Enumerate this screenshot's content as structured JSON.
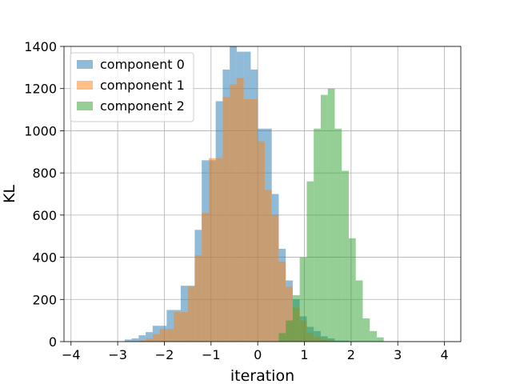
{
  "chart_data": {
    "type": "histogram",
    "xlabel": "iteration",
    "ylabel": "KL",
    "xlim": [
      -4.15,
      4.35
    ],
    "ylim": [
      0,
      1400
    ],
    "xticks": [
      -4,
      -3,
      -2,
      -1,
      0,
      1,
      2,
      3,
      4
    ],
    "yticks": [
      0,
      200,
      400,
      600,
      800,
      1000,
      1200,
      1400
    ],
    "grid": true,
    "legend_position": "top-left",
    "bin_width": 0.15,
    "series": [
      {
        "name": "component 0",
        "color": "#1f77b4",
        "opacity": 0.5,
        "bins_start": -2.85,
        "counts": [
          10,
          15,
          30,
          45,
          75,
          75,
          150,
          150,
          265,
          265,
          530,
          860,
          860,
          1140,
          1290,
          1400,
          1375,
          1375,
          1290,
          1010,
          1010,
          700,
          440,
          290,
          200,
          120,
          70,
          50,
          25,
          15,
          5,
          5
        ]
      },
      {
        "name": "component 1",
        "color": "#ff7f0e",
        "opacity": 0.5,
        "bins_start": -2.55,
        "counts": [
          5,
          15,
          35,
          60,
          60,
          140,
          140,
          260,
          410,
          610,
          870,
          870,
          1160,
          1220,
          1250,
          1150,
          1150,
          950,
          720,
          600,
          380,
          260,
          160,
          100,
          40,
          20,
          10,
          5
        ]
      },
      {
        "name": "component 2",
        "color": "#2ca02c",
        "opacity": 0.5,
        "bins_start": 0.45,
        "counts": [
          40,
          100,
          220,
          400,
          760,
          1010,
          1170,
          1200,
          1010,
          810,
          490,
          290,
          110,
          50,
          20
        ]
      }
    ]
  }
}
